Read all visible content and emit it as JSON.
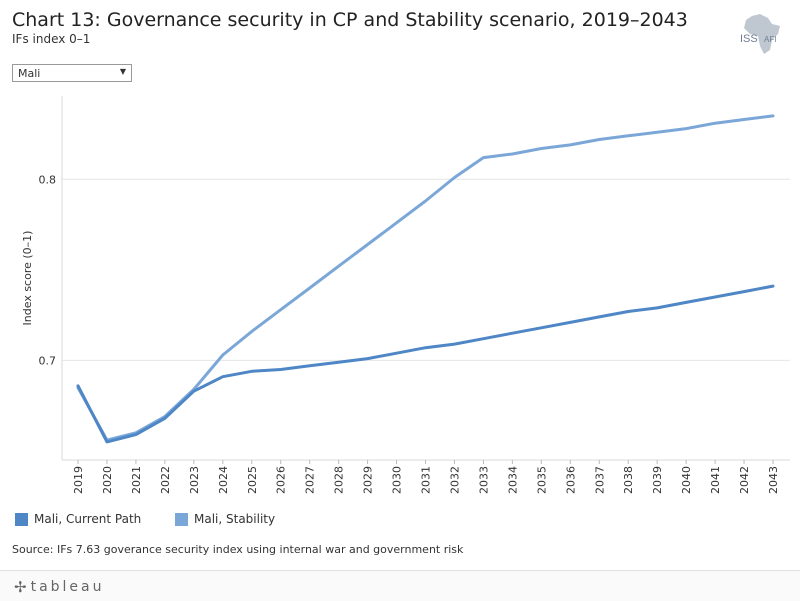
{
  "header": {
    "title": "Chart 13: Governance security in CP and Stability scenario, 2019–2043",
    "subtitle": "IFs index 0–1",
    "logo_text": "ISS",
    "logo_subtext": "AFI"
  },
  "filter": {
    "selected": "Mali"
  },
  "chart_data": {
    "type": "line",
    "title": "Chart 13: Governance security in CP and Stability scenario, 2019–2043",
    "ylabel": "Index score (0–1)",
    "xlabel": "",
    "x": [
      2019,
      2020,
      2021,
      2022,
      2023,
      2024,
      2025,
      2026,
      2027,
      2028,
      2029,
      2030,
      2031,
      2032,
      2033,
      2034,
      2035,
      2036,
      2037,
      2038,
      2039,
      2040,
      2041,
      2042,
      2043
    ],
    "x_labels": [
      "2019",
      "2020",
      "2021",
      "2022",
      "2023",
      "2024",
      "2025",
      "2026",
      "2027",
      "2028",
      "2029",
      "2030",
      "2031",
      "2032",
      "2033",
      "2034",
      "2035",
      "2036",
      "2037",
      "2038",
      "2039",
      "2040",
      "2041",
      "2042",
      "2043"
    ],
    "ylim": [
      0.645,
      0.846
    ],
    "yticks": [
      0.7,
      0.8
    ],
    "ytick_labels": [
      "0.7",
      "0.8"
    ],
    "series": [
      {
        "name": "Mali, Current Path",
        "color": "#4e86c6",
        "values": [
          0.686,
          0.655,
          0.659,
          0.668,
          0.683,
          0.691,
          0.694,
          0.695,
          0.697,
          0.699,
          0.701,
          0.704,
          0.707,
          0.709,
          0.712,
          0.715,
          0.718,
          0.721,
          0.724,
          0.727,
          0.729,
          0.732,
          0.735,
          0.738,
          0.741
        ]
      },
      {
        "name": "Mali, Stability",
        "color": "#7ba7d8",
        "values": [
          0.685,
          0.656,
          0.66,
          0.669,
          0.684,
          0.703,
          0.716,
          0.728,
          0.74,
          0.752,
          0.764,
          0.776,
          0.788,
          0.801,
          0.812,
          0.814,
          0.817,
          0.819,
          0.822,
          0.824,
          0.826,
          0.828,
          0.831,
          0.833,
          0.835
        ]
      }
    ]
  },
  "source": "Source: IFs 7.63 goverance security index using internal war and government risk",
  "footer": {
    "brand": "tableau",
    "brand_icon": "tableau-plus-icon"
  }
}
